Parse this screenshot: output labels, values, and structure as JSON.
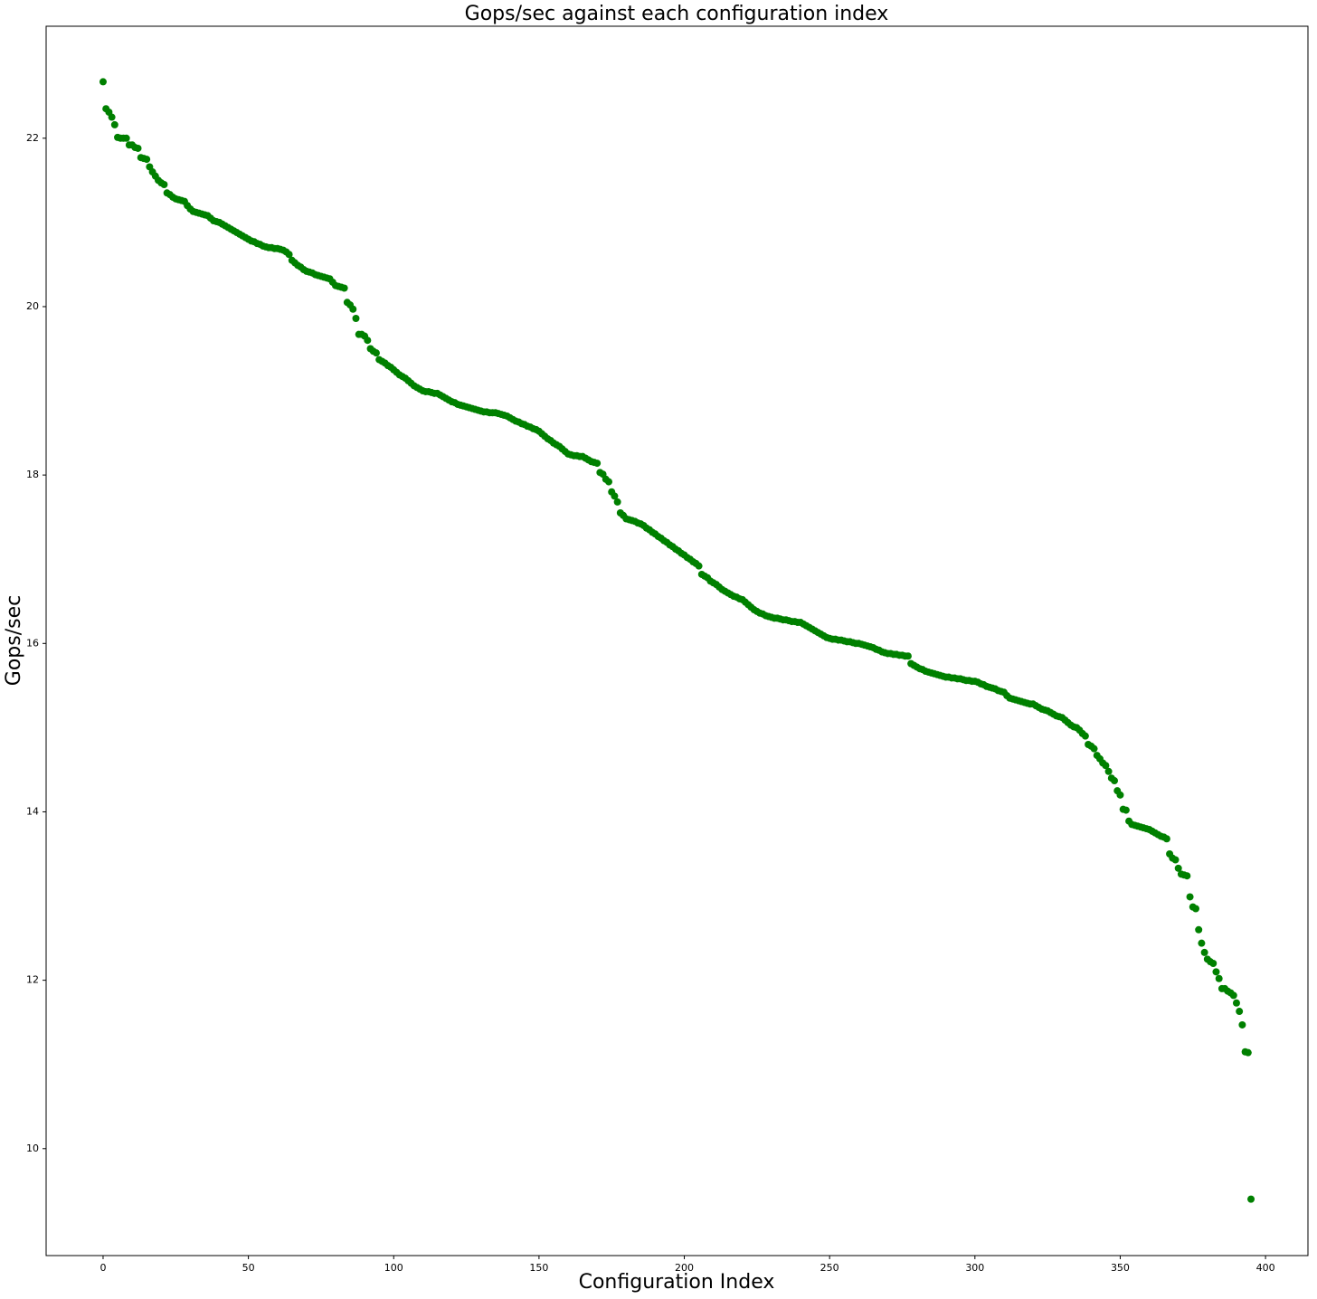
{
  "chart_data": {
    "type": "scatter",
    "title": "Gops/sec against each configuration index",
    "x_label": "Configuration Index",
    "y_label": "Gops/sec",
    "x": [
      0,
      1,
      2,
      3,
      4,
      5,
      6,
      7,
      8,
      9,
      10,
      11,
      12,
      13,
      14,
      15,
      16,
      17,
      18,
      19,
      20,
      21,
      22,
      23,
      24,
      25,
      26,
      27,
      28,
      29,
      30,
      31,
      32,
      33,
      34,
      35,
      36,
      37,
      38,
      39,
      40,
      41,
      42,
      43,
      44,
      45,
      46,
      47,
      48,
      49,
      50,
      51,
      52,
      53,
      54,
      55,
      56,
      57,
      58,
      59,
      60,
      61,
      62,
      63,
      64,
      65,
      66,
      67,
      68,
      69,
      70,
      71,
      72,
      73,
      74,
      75,
      76,
      77,
      78,
      79,
      80,
      81,
      82,
      83,
      84,
      85,
      86,
      87,
      88,
      89,
      90,
      91,
      92,
      93,
      94,
      95,
      96,
      97,
      98,
      99,
      100,
      101,
      102,
      103,
      104,
      105,
      106,
      107,
      108,
      109,
      110,
      111,
      112,
      113,
      114,
      115,
      116,
      117,
      118,
      119,
      120,
      121,
      122,
      123,
      124,
      125,
      126,
      127,
      128,
      129,
      130,
      131,
      132,
      133,
      134,
      135,
      136,
      137,
      138,
      139,
      140,
      141,
      142,
      143,
      144,
      145,
      146,
      147,
      148,
      149,
      150,
      151,
      152,
      153,
      154,
      155,
      156,
      157,
      158,
      159,
      160,
      161,
      162,
      163,
      164,
      165,
      166,
      167,
      168,
      169,
      170,
      171,
      172,
      173,
      174,
      175,
      176,
      177,
      178,
      179,
      180,
      181,
      182,
      183,
      184,
      185,
      186,
      187,
      188,
      189,
      190,
      191,
      192,
      193,
      194,
      195,
      196,
      197,
      198,
      199,
      200,
      201,
      202,
      203,
      204,
      205,
      206,
      207,
      208,
      209,
      210,
      211,
      212,
      213,
      214,
      215,
      216,
      217,
      218,
      219,
      220,
      221,
      222,
      223,
      224,
      225,
      226,
      227,
      228,
      229,
      230,
      231,
      232,
      233,
      234,
      235,
      236,
      237,
      238,
      239,
      240,
      241,
      242,
      243,
      244,
      245,
      246,
      247,
      248,
      249,
      250,
      251,
      252,
      253,
      254,
      255,
      256,
      257,
      258,
      259,
      260,
      261,
      262,
      263,
      264,
      265,
      266,
      267,
      268,
      269,
      270,
      271,
      272,
      273,
      274,
      275,
      276,
      277,
      278,
      279,
      280,
      281,
      282,
      283,
      284,
      285,
      286,
      287,
      288,
      289,
      290,
      291,
      292,
      293,
      294,
      295,
      296,
      297,
      298,
      299,
      300,
      301,
      302,
      303,
      304,
      305,
      306,
      307,
      308,
      309,
      310,
      311,
      312,
      313,
      314,
      315,
      316,
      317,
      318,
      319,
      320,
      321,
      322,
      323,
      324,
      325,
      326,
      327,
      328,
      329,
      330,
      331,
      332,
      333,
      334,
      335,
      336,
      337,
      338,
      339,
      340,
      341,
      342,
      343,
      344,
      345,
      346,
      347,
      348,
      349,
      350,
      351,
      352,
      353,
      354,
      355,
      356,
      357,
      358,
      359,
      360,
      361,
      362,
      363,
      364,
      365,
      366,
      367,
      368,
      369,
      370,
      371,
      372,
      373,
      374,
      375,
      376,
      377,
      378,
      379,
      380,
      381,
      382,
      383,
      384,
      385,
      386,
      387,
      388,
      389,
      390,
      391,
      392,
      393,
      394,
      395
    ],
    "values": [
      22.67,
      22.35,
      22.31,
      22.25,
      22.16,
      22.01,
      22.0,
      22.0,
      22.0,
      21.92,
      21.92,
      21.89,
      21.88,
      21.77,
      21.76,
      21.75,
      21.66,
      21.6,
      21.55,
      21.5,
      21.47,
      21.45,
      21.35,
      21.33,
      21.3,
      21.28,
      21.27,
      21.26,
      21.25,
      21.2,
      21.16,
      21.13,
      21.12,
      21.11,
      21.1,
      21.09,
      21.08,
      21.05,
      21.02,
      21.01,
      21.0,
      20.98,
      20.96,
      20.94,
      20.92,
      20.9,
      20.88,
      20.86,
      20.84,
      20.82,
      20.8,
      20.78,
      20.77,
      20.75,
      20.74,
      20.72,
      20.71,
      20.7,
      20.7,
      20.69,
      20.69,
      20.68,
      20.67,
      20.65,
      20.62,
      20.55,
      20.52,
      20.49,
      20.47,
      20.44,
      20.42,
      20.41,
      20.4,
      20.38,
      20.37,
      20.36,
      20.35,
      20.34,
      20.33,
      20.29,
      20.25,
      20.24,
      20.23,
      20.22,
      20.05,
      20.02,
      19.97,
      19.86,
      19.67,
      19.67,
      19.65,
      19.6,
      19.5,
      19.47,
      19.45,
      19.37,
      19.35,
      19.33,
      19.3,
      19.28,
      19.25,
      19.22,
      19.19,
      19.17,
      19.15,
      19.12,
      19.09,
      19.06,
      19.04,
      19.02,
      19.0,
      18.99,
      18.99,
      18.98,
      18.97,
      18.97,
      18.95,
      18.93,
      18.91,
      18.89,
      18.87,
      18.86,
      18.84,
      18.83,
      18.82,
      18.81,
      18.8,
      18.79,
      18.78,
      18.77,
      18.76,
      18.75,
      18.75,
      18.74,
      18.74,
      18.74,
      18.73,
      18.72,
      18.71,
      18.7,
      18.68,
      18.66,
      18.64,
      18.63,
      18.61,
      18.6,
      18.58,
      18.57,
      18.55,
      18.54,
      18.52,
      18.49,
      18.46,
      18.43,
      18.41,
      18.38,
      18.36,
      18.34,
      18.31,
      18.28,
      18.25,
      18.24,
      18.23,
      18.23,
      18.22,
      18.22,
      18.2,
      18.18,
      18.16,
      18.15,
      18.14,
      18.03,
      18.01,
      17.95,
      17.92,
      17.8,
      17.75,
      17.68,
      17.55,
      17.52,
      17.48,
      17.47,
      17.46,
      17.45,
      17.43,
      17.42,
      17.4,
      17.37,
      17.35,
      17.32,
      17.3,
      17.27,
      17.25,
      17.22,
      17.2,
      17.17,
      17.15,
      17.12,
      17.1,
      17.07,
      17.05,
      17.02,
      17.0,
      16.97,
      16.95,
      16.92,
      16.82,
      16.8,
      16.78,
      16.74,
      16.72,
      16.7,
      16.67,
      16.64,
      16.62,
      16.6,
      16.58,
      16.56,
      16.55,
      16.53,
      16.52,
      16.49,
      16.46,
      16.43,
      16.4,
      16.38,
      16.36,
      16.35,
      16.33,
      16.32,
      16.31,
      16.3,
      16.3,
      16.29,
      16.28,
      16.28,
      16.27,
      16.26,
      16.26,
      16.25,
      16.25,
      16.23,
      16.21,
      16.19,
      16.17,
      16.15,
      16.13,
      16.11,
      16.09,
      16.07,
      16.06,
      16.05,
      16.05,
      16.04,
      16.04,
      16.03,
      16.02,
      16.02,
      16.01,
      16.0,
      16.0,
      15.99,
      15.98,
      15.97,
      15.96,
      15.95,
      15.93,
      15.92,
      15.9,
      15.89,
      15.88,
      15.88,
      15.87,
      15.87,
      15.86,
      15.86,
      15.85,
      15.85,
      15.76,
      15.74,
      15.72,
      15.7,
      15.69,
      15.67,
      15.66,
      15.65,
      15.64,
      15.63,
      15.62,
      15.61,
      15.6,
      15.6,
      15.59,
      15.59,
      15.58,
      15.58,
      15.57,
      15.56,
      15.56,
      15.55,
      15.55,
      15.54,
      15.52,
      15.51,
      15.49,
      15.48,
      15.47,
      15.46,
      15.44,
      15.43,
      15.42,
      15.38,
      15.35,
      15.34,
      15.33,
      15.32,
      15.31,
      15.3,
      15.29,
      15.28,
      15.28,
      15.26,
      15.24,
      15.22,
      15.21,
      15.2,
      15.18,
      15.16,
      15.14,
      15.13,
      15.12,
      15.09,
      15.06,
      15.03,
      15.01,
      15.0,
      14.97,
      14.93,
      14.9,
      14.8,
      14.78,
      14.75,
      14.67,
      14.63,
      14.58,
      14.55,
      14.48,
      14.4,
      14.37,
      14.25,
      14.2,
      14.03,
      14.02,
      13.89,
      13.85,
      13.84,
      13.83,
      13.82,
      13.81,
      13.8,
      13.79,
      13.77,
      13.75,
      13.73,
      13.71,
      13.7,
      13.68,
      13.5,
      13.45,
      13.43,
      13.33,
      13.26,
      13.25,
      13.24,
      12.99,
      12.87,
      12.85,
      12.6,
      12.44,
      12.33,
      12.25,
      12.22,
      12.2,
      12.1,
      12.02,
      11.9,
      11.9,
      11.87,
      11.85,
      11.82,
      11.73,
      11.63,
      11.47,
      11.15,
      11.14,
      9.4
    ],
    "color": "#008000",
    "xlim": [
      -19.6,
      414.6
    ],
    "xticks": [
      0,
      50,
      100,
      150,
      200,
      250,
      300,
      350,
      400
    ],
    "ylim": [
      8.73,
      23.33
    ],
    "yticks": [
      10,
      12,
      14,
      16,
      18,
      20,
      22
    ],
    "grid": false
  }
}
